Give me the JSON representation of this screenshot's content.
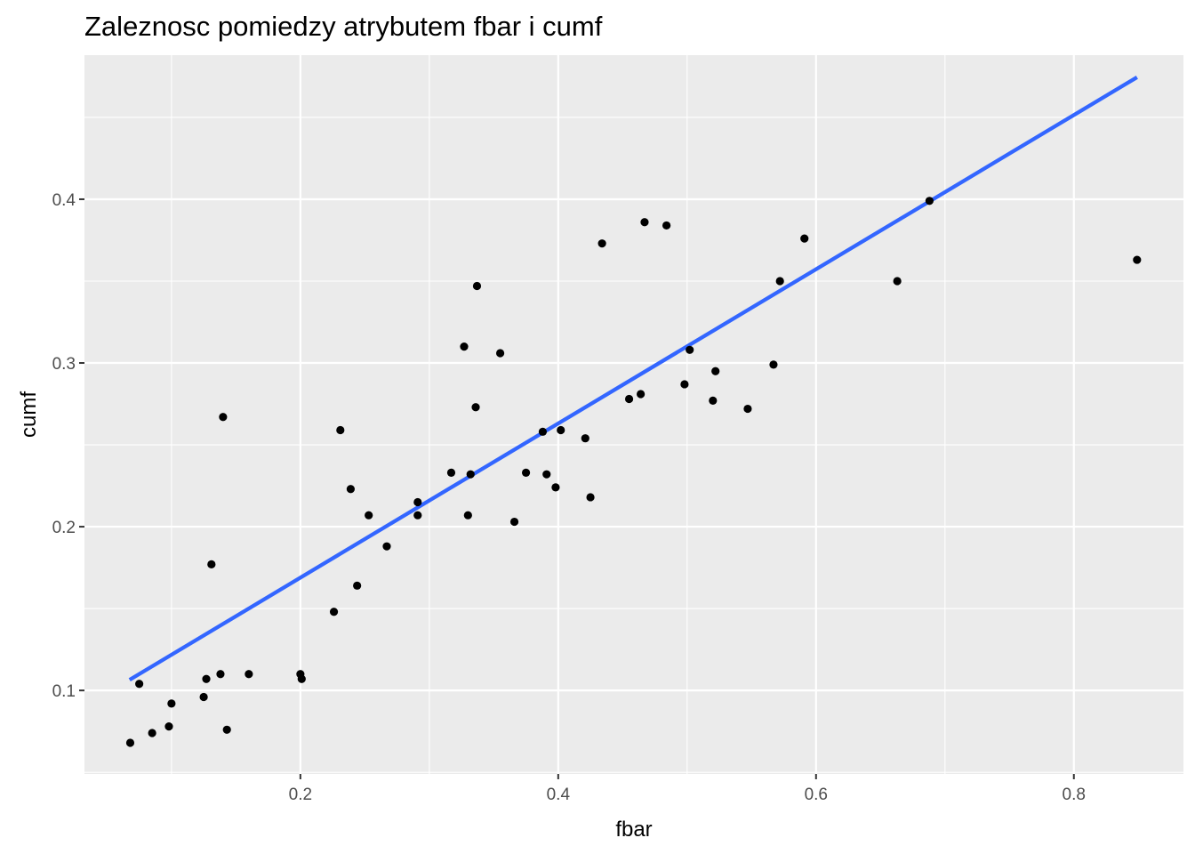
{
  "chart_data": {
    "type": "scatter",
    "title": "Zaleznosc pomiedzy atrybutem fbar i cumf",
    "xlabel": "fbar",
    "ylabel": "cumf",
    "xlim": [
      0.0325,
      0.885
    ],
    "ylim": [
      0.049,
      0.488
    ],
    "xticks": [
      0.2,
      0.4,
      0.6,
      0.8
    ],
    "xtick_labels": [
      "0.2",
      "0.4",
      "0.6",
      "0.8"
    ],
    "yticks": [
      0.1,
      0.2,
      0.3,
      0.4
    ],
    "ytick_labels": [
      "0.1",
      "0.2",
      "0.3",
      "0.4"
    ],
    "grid": true,
    "background": "#ebebeb",
    "grid_color": "#ffffff",
    "point_color": "#000000",
    "trend_color": "#3366ff",
    "points": [
      [
        0.068,
        0.068
      ],
      [
        0.075,
        0.104
      ],
      [
        0.085,
        0.074
      ],
      [
        0.098,
        0.078
      ],
      [
        0.1,
        0.092
      ],
      [
        0.125,
        0.096
      ],
      [
        0.127,
        0.107
      ],
      [
        0.131,
        0.177
      ],
      [
        0.138,
        0.11
      ],
      [
        0.14,
        0.267
      ],
      [
        0.143,
        0.076
      ],
      [
        0.16,
        0.11
      ],
      [
        0.2,
        0.11
      ],
      [
        0.201,
        0.107
      ],
      [
        0.226,
        0.148
      ],
      [
        0.231,
        0.259
      ],
      [
        0.239,
        0.223
      ],
      [
        0.244,
        0.164
      ],
      [
        0.253,
        0.207
      ],
      [
        0.267,
        0.188
      ],
      [
        0.291,
        0.215
      ],
      [
        0.291,
        0.207
      ],
      [
        0.317,
        0.233
      ],
      [
        0.327,
        0.31
      ],
      [
        0.33,
        0.207
      ],
      [
        0.332,
        0.232
      ],
      [
        0.336,
        0.273
      ],
      [
        0.337,
        0.347
      ],
      [
        0.355,
        0.306
      ],
      [
        0.366,
        0.203
      ],
      [
        0.375,
        0.233
      ],
      [
        0.388,
        0.258
      ],
      [
        0.391,
        0.232
      ],
      [
        0.398,
        0.224
      ],
      [
        0.402,
        0.259
      ],
      [
        0.421,
        0.254
      ],
      [
        0.425,
        0.218
      ],
      [
        0.434,
        0.373
      ],
      [
        0.455,
        0.278
      ],
      [
        0.464,
        0.281
      ],
      [
        0.467,
        0.386
      ],
      [
        0.484,
        0.384
      ],
      [
        0.498,
        0.287
      ],
      [
        0.502,
        0.308
      ],
      [
        0.52,
        0.277
      ],
      [
        0.522,
        0.295
      ],
      [
        0.547,
        0.272
      ],
      [
        0.567,
        0.299
      ],
      [
        0.572,
        0.35
      ],
      [
        0.591,
        0.376
      ],
      [
        0.663,
        0.35
      ],
      [
        0.688,
        0.399
      ],
      [
        0.849,
        0.363
      ]
    ],
    "trend_line": {
      "method": "linear",
      "x": [
        0.0675,
        0.849
      ],
      "y": [
        0.1065,
        0.4745
      ]
    }
  }
}
